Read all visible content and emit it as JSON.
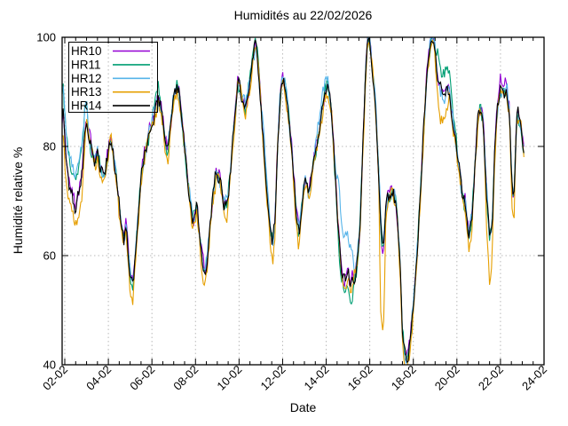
{
  "chart_data": {
    "type": "line",
    "title": "Humidités au 22/02/2026",
    "xlabel": "Date",
    "ylabel": "Humidité relative %",
    "ylim": [
      40,
      100
    ],
    "yticks": [
      40,
      60,
      80,
      100
    ],
    "grid_y": [
      60,
      80
    ],
    "xticks": [
      "02-02",
      "04-02",
      "06-02",
      "08-02",
      "10-02",
      "12-02",
      "14-02",
      "16-02",
      "18-02",
      "20-02",
      "22-02",
      "24-02"
    ],
    "x_unit": "days since 02-02 00:00, ticks every 2 days, minor ticks every 0.5 day",
    "grid": "dotted",
    "legend_position": "top-left",
    "colors": {
      "border": "#000000",
      "grid": "#b9b9b9",
      "background": "#ffffff"
    },
    "base_curve_day_value": [
      [
        -0.15,
        80
      ],
      [
        -0.1,
        89
      ],
      [
        -0.05,
        84
      ],
      [
        0.05,
        78
      ],
      [
        0.2,
        73
      ],
      [
        0.35,
        71
      ],
      [
        0.5,
        69
      ],
      [
        0.65,
        72
      ],
      [
        0.8,
        75
      ],
      [
        0.92,
        82
      ],
      [
        1.0,
        85
      ],
      [
        1.1,
        82
      ],
      [
        1.25,
        79
      ],
      [
        1.4,
        77
      ],
      [
        1.5,
        79
      ],
      [
        1.62,
        76
      ],
      [
        1.75,
        74
      ],
      [
        1.88,
        76
      ],
      [
        2.0,
        79
      ],
      [
        2.12,
        82
      ],
      [
        2.25,
        78
      ],
      [
        2.4,
        73
      ],
      [
        2.55,
        67
      ],
      [
        2.65,
        64
      ],
      [
        2.73,
        62
      ],
      [
        2.82,
        66
      ],
      [
        2.92,
        60
      ],
      [
        3.02,
        56
      ],
      [
        3.12,
        55
      ],
      [
        3.22,
        59
      ],
      [
        3.35,
        66
      ],
      [
        3.5,
        74
      ],
      [
        3.7,
        79
      ],
      [
        3.9,
        83
      ],
      [
        4.1,
        86
      ],
      [
        4.28,
        89
      ],
      [
        4.45,
        86
      ],
      [
        4.6,
        81
      ],
      [
        4.72,
        79
      ],
      [
        4.85,
        84
      ],
      [
        5.0,
        89
      ],
      [
        5.15,
        91
      ],
      [
        5.3,
        88
      ],
      [
        5.5,
        80
      ],
      [
        5.7,
        72
      ],
      [
        5.88,
        66
      ],
      [
        6.05,
        69
      ],
      [
        6.18,
        64
      ],
      [
        6.32,
        59
      ],
      [
        6.42,
        57
      ],
      [
        6.55,
        60
      ],
      [
        6.75,
        69
      ],
      [
        6.95,
        75
      ],
      [
        7.1,
        74
      ],
      [
        7.3,
        70
      ],
      [
        7.45,
        69
      ],
      [
        7.6,
        75
      ],
      [
        7.8,
        85
      ],
      [
        7.95,
        92
      ],
      [
        8.1,
        90
      ],
      [
        8.3,
        87
      ],
      [
        8.5,
        92
      ],
      [
        8.65,
        96
      ],
      [
        8.75,
        99
      ],
      [
        8.85,
        96
      ],
      [
        9.0,
        88
      ],
      [
        9.15,
        79
      ],
      [
        9.3,
        70
      ],
      [
        9.45,
        64
      ],
      [
        9.55,
        62
      ],
      [
        9.65,
        66
      ],
      [
        9.75,
        78
      ],
      [
        9.88,
        89
      ],
      [
        10.0,
        93
      ],
      [
        10.12,
        91
      ],
      [
        10.3,
        85
      ],
      [
        10.5,
        75
      ],
      [
        10.62,
        68
      ],
      [
        10.75,
        64
      ],
      [
        10.9,
        70
      ],
      [
        11.05,
        74
      ],
      [
        11.2,
        71
      ],
      [
        11.35,
        75
      ],
      [
        11.5,
        79
      ],
      [
        11.65,
        82
      ],
      [
        11.8,
        86
      ],
      [
        11.95,
        90
      ],
      [
        12.08,
        91
      ],
      [
        12.25,
        86
      ],
      [
        12.4,
        76
      ],
      [
        12.55,
        66
      ],
      [
        12.7,
        58
      ],
      [
        12.85,
        55
      ],
      [
        13.0,
        57
      ],
      [
        13.1,
        54
      ],
      [
        13.25,
        56
      ],
      [
        13.4,
        58
      ],
      [
        13.55,
        65
      ],
      [
        13.7,
        82
      ],
      [
        13.85,
        97
      ],
      [
        13.93,
        100.5
      ],
      [
        14.02,
        99
      ],
      [
        14.12,
        94
      ],
      [
        14.25,
        89
      ],
      [
        14.4,
        76
      ],
      [
        14.52,
        63
      ],
      [
        14.62,
        60
      ],
      [
        14.75,
        69
      ],
      [
        14.9,
        71
      ],
      [
        15.05,
        72
      ],
      [
        15.2,
        70
      ],
      [
        15.35,
        62
      ],
      [
        15.5,
        46
      ],
      [
        15.6,
        42
      ],
      [
        15.72,
        41
      ],
      [
        15.85,
        44
      ],
      [
        16.0,
        51
      ],
      [
        16.2,
        62
      ],
      [
        16.4,
        77
      ],
      [
        16.6,
        92
      ],
      [
        16.78,
        99
      ],
      [
        16.88,
        100.5
      ],
      [
        16.98,
        98
      ],
      [
        17.1,
        93
      ],
      [
        17.25,
        90
      ],
      [
        17.4,
        89
      ],
      [
        17.52,
        91
      ],
      [
        17.65,
        90
      ],
      [
        17.8,
        85
      ],
      [
        17.95,
        81
      ],
      [
        18.1,
        76
      ],
      [
        18.25,
        71
      ],
      [
        18.4,
        69
      ],
      [
        18.55,
        64
      ],
      [
        18.68,
        67
      ],
      [
        18.82,
        76
      ],
      [
        18.95,
        84
      ],
      [
        19.08,
        87
      ],
      [
        19.2,
        85
      ],
      [
        19.35,
        73
      ],
      [
        19.5,
        63
      ],
      [
        19.62,
        66
      ],
      [
        19.75,
        80
      ],
      [
        19.88,
        88
      ],
      [
        20.0,
        90
      ],
      [
        20.15,
        90
      ],
      [
        20.28,
        91
      ],
      [
        20.42,
        86
      ],
      [
        20.52,
        73
      ],
      [
        20.62,
        70
      ],
      [
        20.75,
        86
      ],
      [
        20.88,
        85
      ],
      [
        21.0,
        82
      ],
      [
        21.1,
        78
      ]
    ],
    "series": [
      {
        "name": "HR10",
        "color": "#9400d3",
        "deviations": [
          {
            "from": -0.3,
            "to": 22,
            "delta": 0.3
          },
          {
            "from": 19.6,
            "to": 20.6,
            "delta": 1.2
          }
        ]
      },
      {
        "name": "HR11",
        "color": "#009e73",
        "deviations": [
          {
            "from": -0.3,
            "to": 1.15,
            "delta": 4.5
          },
          {
            "from": 4.0,
            "to": 4.5,
            "delta": 1.5
          },
          {
            "from": 8.3,
            "to": 9.1,
            "delta": 1.5
          },
          {
            "from": 12.4,
            "to": 13.45,
            "delta": -2.5
          },
          {
            "from": 16.9,
            "to": 17.95,
            "delta": 4
          }
        ]
      },
      {
        "name": "HR12",
        "color": "#56b4e9",
        "deviations": [
          {
            "from": -0.3,
            "to": 1.15,
            "delta": 5.5
          },
          {
            "from": 9.0,
            "to": 9.5,
            "delta": 2.5
          },
          {
            "from": 11.4,
            "to": 12.25,
            "delta": 2
          },
          {
            "from": 12.35,
            "to": 13.35,
            "delta": 8
          },
          {
            "from": 14.3,
            "to": 14.8,
            "delta": 2
          }
        ]
      },
      {
        "name": "HR13",
        "color": "#e69f00",
        "deviations": [
          {
            "from": -0.3,
            "to": 22,
            "delta": -0.7
          },
          {
            "from": -0.3,
            "to": 1.0,
            "delta": -3
          },
          {
            "from": 2.75,
            "to": 3.25,
            "delta": -2.5
          },
          {
            "from": 4.5,
            "to": 4.85,
            "delta": -2
          },
          {
            "from": 6.15,
            "to": 6.6,
            "delta": -2.5
          },
          {
            "from": 7.2,
            "to": 7.5,
            "delta": -2
          },
          {
            "from": 9.35,
            "to": 9.7,
            "delta": -2.5
          },
          {
            "from": 10.45,
            "to": 10.9,
            "delta": -2.5
          },
          {
            "from": 14.4,
            "to": 14.75,
            "delta": -13
          },
          {
            "from": 15.45,
            "to": 16.05,
            "delta": -1.5
          },
          {
            "from": 17.0,
            "to": 17.7,
            "delta": -4
          },
          {
            "from": 18.35,
            "to": 18.8,
            "delta": -2.5
          },
          {
            "from": 19.25,
            "to": 19.7,
            "delta": -7
          },
          {
            "from": 20.45,
            "to": 20.7,
            "delta": -2
          }
        ]
      },
      {
        "name": "HR14",
        "color": "#000000",
        "deviations": []
      }
    ]
  }
}
